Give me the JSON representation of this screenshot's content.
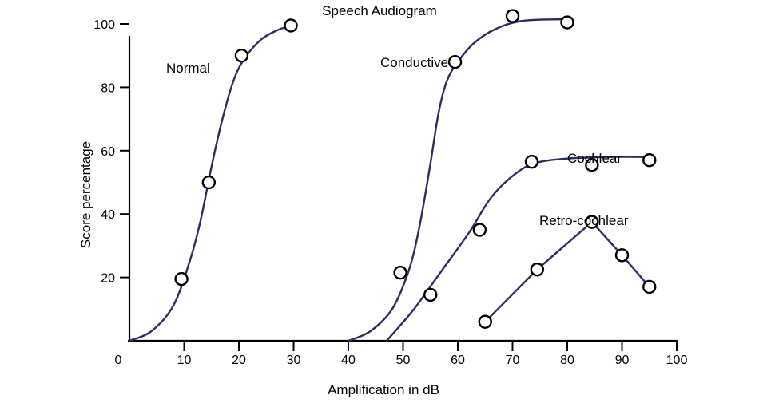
{
  "chart_data": {
    "type": "line",
    "title": "Speech Audiogram",
    "xlabel": "Amplification in dB",
    "ylabel": "Score percentage",
    "xlim": [
      0,
      100
    ],
    "ylim": [
      0,
      100
    ],
    "x_ticks": [
      0,
      10,
      20,
      30,
      40,
      50,
      60,
      70,
      80,
      90,
      100
    ],
    "y_ticks": [
      20,
      40,
      60,
      80,
      100
    ],
    "grid": false,
    "legend": "none",
    "line_color": "#2b2d63",
    "marker_style": "open-circle",
    "series": [
      {
        "name": "Normal",
        "points": [
          [
            9.5,
            19.5
          ],
          [
            14.5,
            50
          ],
          [
            20.5,
            90
          ],
          [
            29.5,
            99.5
          ]
        ],
        "curve": [
          [
            0,
            0
          ],
          [
            4,
            3
          ],
          [
            8,
            11
          ],
          [
            11,
            25
          ],
          [
            13,
            38
          ],
          [
            15,
            55
          ],
          [
            17,
            70
          ],
          [
            19,
            82
          ],
          [
            21,
            89
          ],
          [
            24,
            95
          ],
          [
            27,
            98
          ],
          [
            29.5,
            99.5
          ]
        ]
      },
      {
        "name": "Conductive",
        "points": [
          [
            49.5,
            21.5
          ],
          [
            59.5,
            88
          ],
          [
            70,
            102.5
          ],
          [
            80,
            100.5
          ]
        ],
        "curve": [
          [
            40,
            0
          ],
          [
            44,
            3
          ],
          [
            48,
            10
          ],
          [
            51,
            22
          ],
          [
            53,
            36
          ],
          [
            55,
            56
          ],
          [
            56.5,
            72
          ],
          [
            58,
            82
          ],
          [
            60,
            88
          ],
          [
            63,
            94
          ],
          [
            67,
            98.5
          ],
          [
            72,
            101
          ],
          [
            80,
            101.5
          ]
        ]
      },
      {
        "name": "Cochlear",
        "points": [
          [
            55,
            14.5
          ],
          [
            64,
            35
          ],
          [
            73.5,
            56.5
          ],
          [
            84.5,
            55.5
          ],
          [
            95,
            57
          ]
        ],
        "curve": [
          [
            47,
            0
          ],
          [
            52,
            10
          ],
          [
            57,
            22
          ],
          [
            62,
            34
          ],
          [
            66,
            45
          ],
          [
            70,
            52
          ],
          [
            74,
            56
          ],
          [
            80,
            57.5
          ],
          [
            88,
            58
          ],
          [
            95,
            58
          ]
        ]
      },
      {
        "name": "Retro-cochlear",
        "points": [
          [
            65,
            6
          ],
          [
            74.5,
            22.5
          ],
          [
            84.5,
            37.5
          ],
          [
            90,
            27
          ],
          [
            95,
            17
          ]
        ],
        "curve": [
          [
            65,
            6
          ],
          [
            74.5,
            22.5
          ],
          [
            84.5,
            37.5
          ],
          [
            90,
            27
          ],
          [
            95,
            17
          ]
        ]
      }
    ],
    "series_labels": [
      "Normal",
      "Conductive",
      "Cochlear",
      "Retro-cochlear"
    ]
  }
}
